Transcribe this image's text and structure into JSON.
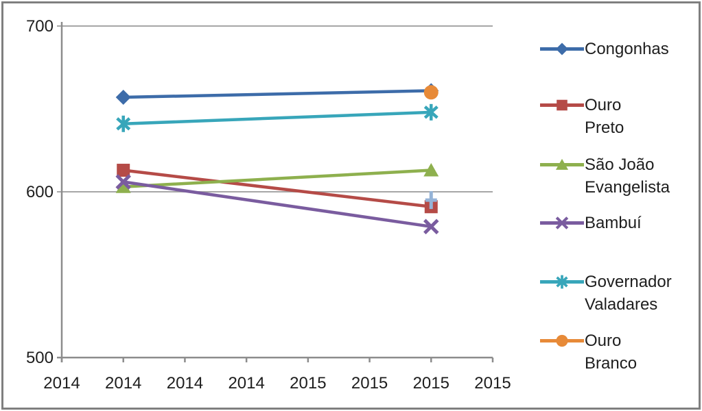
{
  "window": {
    "background": "#ffffff",
    "border_color": "#7f7f7f",
    "text_color": "#1e1e1e",
    "gridline_color": "#a6a6a6",
    "axis_color": "#8c8c8c"
  },
  "chart_data": {
    "type": "line",
    "title": "",
    "grid": true,
    "legend_position": "right",
    "x_axis": {
      "tick_labels": [
        "2014",
        "2014",
        "2014",
        "2014",
        "2015",
        "2015",
        "2015",
        "2015"
      ]
    },
    "y_axis": {
      "min": 500,
      "max": 700,
      "ticks": [
        500,
        600,
        700
      ],
      "tick_labels": [
        "500",
        "600",
        "700"
      ]
    },
    "series": [
      {
        "name": "Congonhas",
        "legend_lines": [
          "Congonhas"
        ],
        "color": "#3d6ca9",
        "marker": "diamond",
        "in_legend": true,
        "points": [
          {
            "x": "2014",
            "slot": 1,
            "value": 657
          },
          {
            "x": "2015",
            "slot": 6,
            "value": 661
          }
        ]
      },
      {
        "name": "Ouro Preto",
        "legend_lines": [
          "Ouro",
          "Preto"
        ],
        "color": "#b54b47",
        "marker": "square",
        "in_legend": true,
        "points": [
          {
            "x": "2014",
            "slot": 1,
            "value": 613
          },
          {
            "x": "2015",
            "slot": 6,
            "value": 591
          }
        ]
      },
      {
        "name": "São João Evangelista",
        "legend_lines": [
          "São João",
          "Evangelista"
        ],
        "color": "#8eb04e",
        "marker": "triangle",
        "in_legend": true,
        "points": [
          {
            "x": "2014",
            "slot": 1,
            "value": 603
          },
          {
            "x": "2015",
            "slot": 6,
            "value": 613
          }
        ]
      },
      {
        "name": "Bambuí",
        "legend_lines": [
          "Bambuí"
        ],
        "color": "#7a5c9f",
        "marker": "x",
        "in_legend": true,
        "points": [
          {
            "x": "2014",
            "slot": 1,
            "value": 606
          },
          {
            "x": "2015",
            "slot": 6,
            "value": 579
          }
        ]
      },
      {
        "name": "Governador Valadares",
        "legend_lines": [
          "Governador",
          "Valadares"
        ],
        "color": "#38a6ba",
        "marker": "star",
        "in_legend": true,
        "points": [
          {
            "x": "2014",
            "slot": 1,
            "value": 641
          },
          {
            "x": "2015",
            "slot": 6,
            "value": 648
          }
        ]
      },
      {
        "name": "Ouro Branco",
        "legend_lines": [
          "Ouro",
          "Branco"
        ],
        "color": "#e78a38",
        "marker": "circle",
        "in_legend": true,
        "points": [
          {
            "x": "2015",
            "slot": 6,
            "value": 660
          }
        ]
      },
      {
        "name": "",
        "legend_lines": [],
        "color": "#95b3d7",
        "marker": "plus",
        "in_legend": false,
        "points": [
          {
            "x": "2015",
            "slot": 6,
            "value": 595
          }
        ]
      }
    ]
  }
}
